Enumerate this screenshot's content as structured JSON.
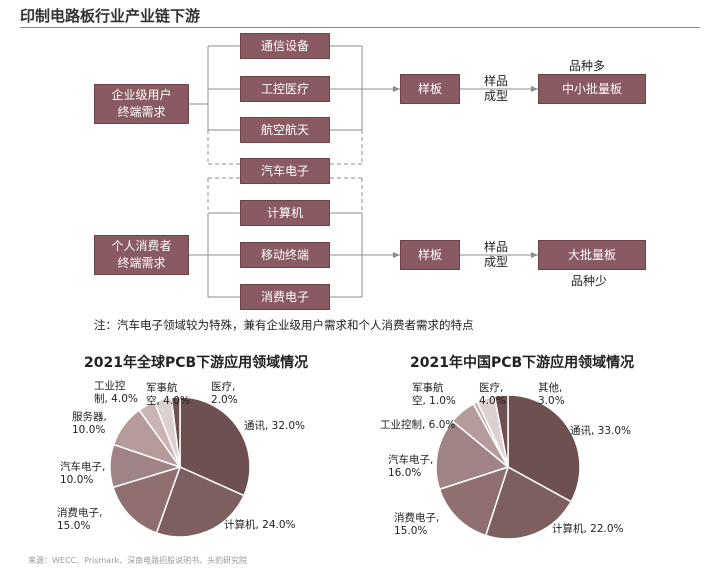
{
  "title": "印制电路板行业产业链下游",
  "flow": {
    "enterprise": "企业级用户\n终端需求",
    "consumer": "个人消费者\n终端需求",
    "apps": [
      "通信设备",
      "工控医疗",
      "航空航天",
      "汽车电子",
      "计算机",
      "移动终端",
      "消费电子"
    ],
    "sample_top": "样板",
    "sample_bottom": "样板",
    "sample_label_top": "样品\n成型",
    "sample_label_bottom": "样品\n成型",
    "out_top": "中小批量板",
    "out_bottom": "大批量板",
    "out_top_label": "品种多",
    "out_bottom_label": "品种少"
  },
  "note": "注：汽车电子领域较为特殊，兼有企业级用户需求和个人消费者需求的特点",
  "colors": {
    "box": "#8a5a62",
    "slices": [
      "#6e5050",
      "#7e5f60",
      "#8f6f70",
      "#a08384",
      "#b69b9b",
      "#cbb4b4",
      "#ddd0d0"
    ]
  },
  "chart_data": [
    {
      "type": "pie",
      "title": "2021年全球PCB下游应用领域情况",
      "slices": [
        {
          "label": "通讯",
          "value": 32.0,
          "text": "通讯, 32.0%"
        },
        {
          "label": "计算机",
          "value": 24.0,
          "text": "计算机, 24.0%"
        },
        {
          "label": "消费电子",
          "value": 15.0,
          "text": "消费电子,\n15.0%"
        },
        {
          "label": "汽车电子",
          "value": 10.0,
          "text": "汽车电子,\n10.0%"
        },
        {
          "label": "服务器",
          "value": 10.0,
          "text": "服务器,\n10.0%"
        },
        {
          "label": "工业控制",
          "value": 4.0,
          "text": "工业控\n制, 4.0%"
        },
        {
          "label": "军事航空",
          "value": 4.0,
          "text": "军事航\n空, 4.0%"
        },
        {
          "label": "医疗",
          "value": 2.0,
          "text": "医疗,\n2.0%"
        }
      ]
    },
    {
      "type": "pie",
      "title": "2021年中国PCB下游应用领域情况",
      "slices": [
        {
          "label": "通讯",
          "value": 33.0,
          "text": "通讯, 33.0%"
        },
        {
          "label": "计算机",
          "value": 22.0,
          "text": "计算机, 22.0%"
        },
        {
          "label": "消费电子",
          "value": 15.0,
          "text": "消费电子,\n15.0%"
        },
        {
          "label": "汽车电子",
          "value": 16.0,
          "text": "汽车电子,\n16.0%"
        },
        {
          "label": "工业控制",
          "value": 6.0,
          "text": "工业控制, 6.0%"
        },
        {
          "label": "军事航空",
          "value": 1.0,
          "text": "军事航\n空, 1.0%"
        },
        {
          "label": "医疗",
          "value": 4.0,
          "text": "医疗,\n4.0%"
        },
        {
          "label": "其他",
          "value": 3.0,
          "text": "其他,\n3.0%"
        }
      ]
    }
  ],
  "source": "来源：WECC、Prismark、深南电路招股说明书、头豹研究院"
}
